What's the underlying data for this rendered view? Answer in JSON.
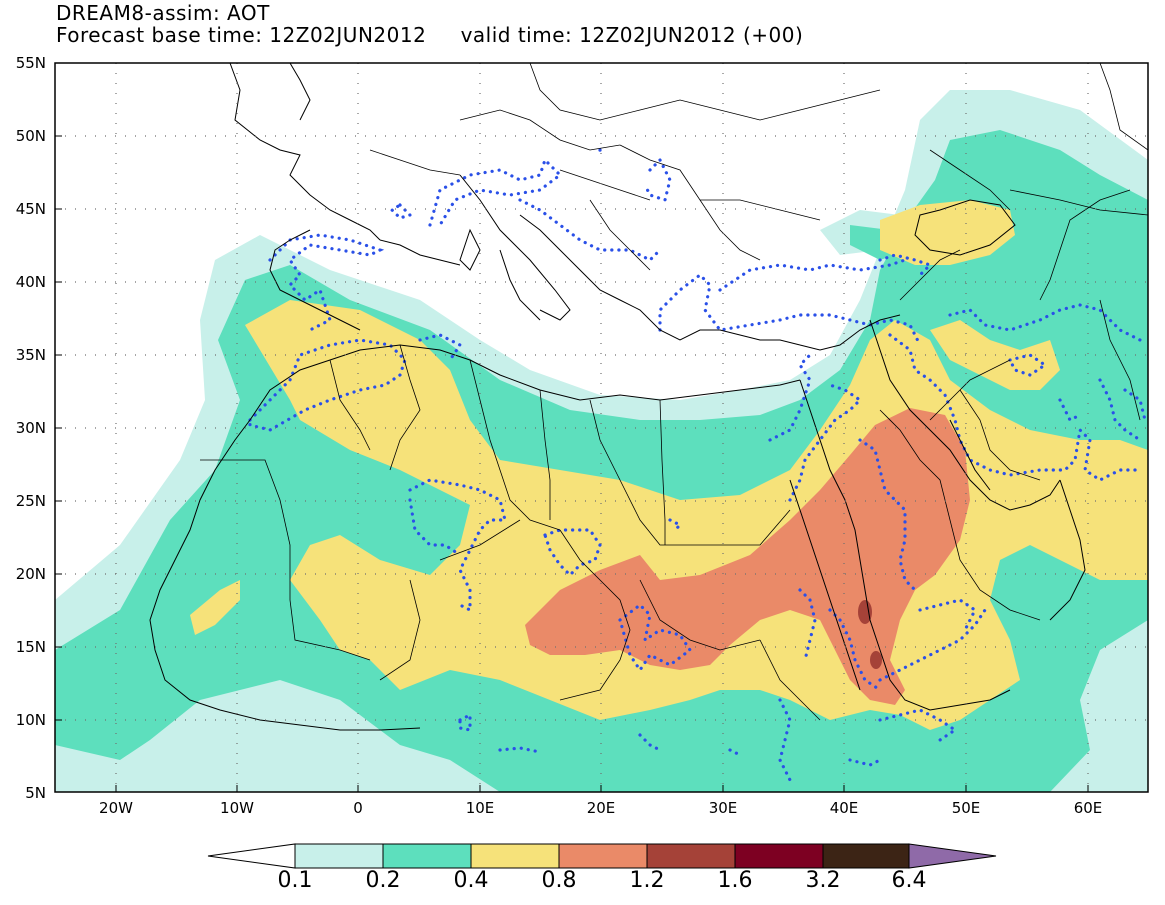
{
  "title": {
    "line1": "DREAM8-assim: AOT",
    "line2": "Forecast base time: 12Z02JUN2012     valid time: 12Z02JUN2012 (+00)"
  },
  "map": {
    "lon_range": [
      -25,
      65
    ],
    "lat_range": [
      5,
      55
    ],
    "lat_labels": [
      "55N",
      "50N",
      "45N",
      "40N",
      "35N",
      "30N",
      "25N",
      "20N",
      "15N",
      "10N",
      "5N"
    ],
    "lon_labels": [
      "20W",
      "10W",
      "0",
      "10E",
      "20E",
      "30E",
      "40E",
      "50E",
      "60E"
    ],
    "grid": true
  },
  "colorbar": {
    "labels": [
      "0.1",
      "0.2",
      "0.4",
      "0.8",
      "1.2",
      "1.6",
      "3.2",
      "6.4"
    ],
    "colors": [
      "#ffffff",
      "#c8f0ea",
      "#5ddfbd",
      "#f6e27a",
      "#ea8a68",
      "#a54238",
      "#7d0022",
      "#3c2415",
      "#8f6aa8"
    ]
  },
  "chart_data": {
    "type": "heatmap",
    "title": "DREAM8-assim: AOT",
    "subtitle": "Forecast base time: 12Z02JUN2012     valid time: 12Z02JUN2012 (+00)",
    "variable": "AOT",
    "x_range": [
      -25,
      65
    ],
    "y_range": [
      5,
      55
    ],
    "levels": [
      0.1,
      0.2,
      0.4,
      0.8,
      1.2,
      1.6,
      3.2,
      6.4
    ]
  }
}
